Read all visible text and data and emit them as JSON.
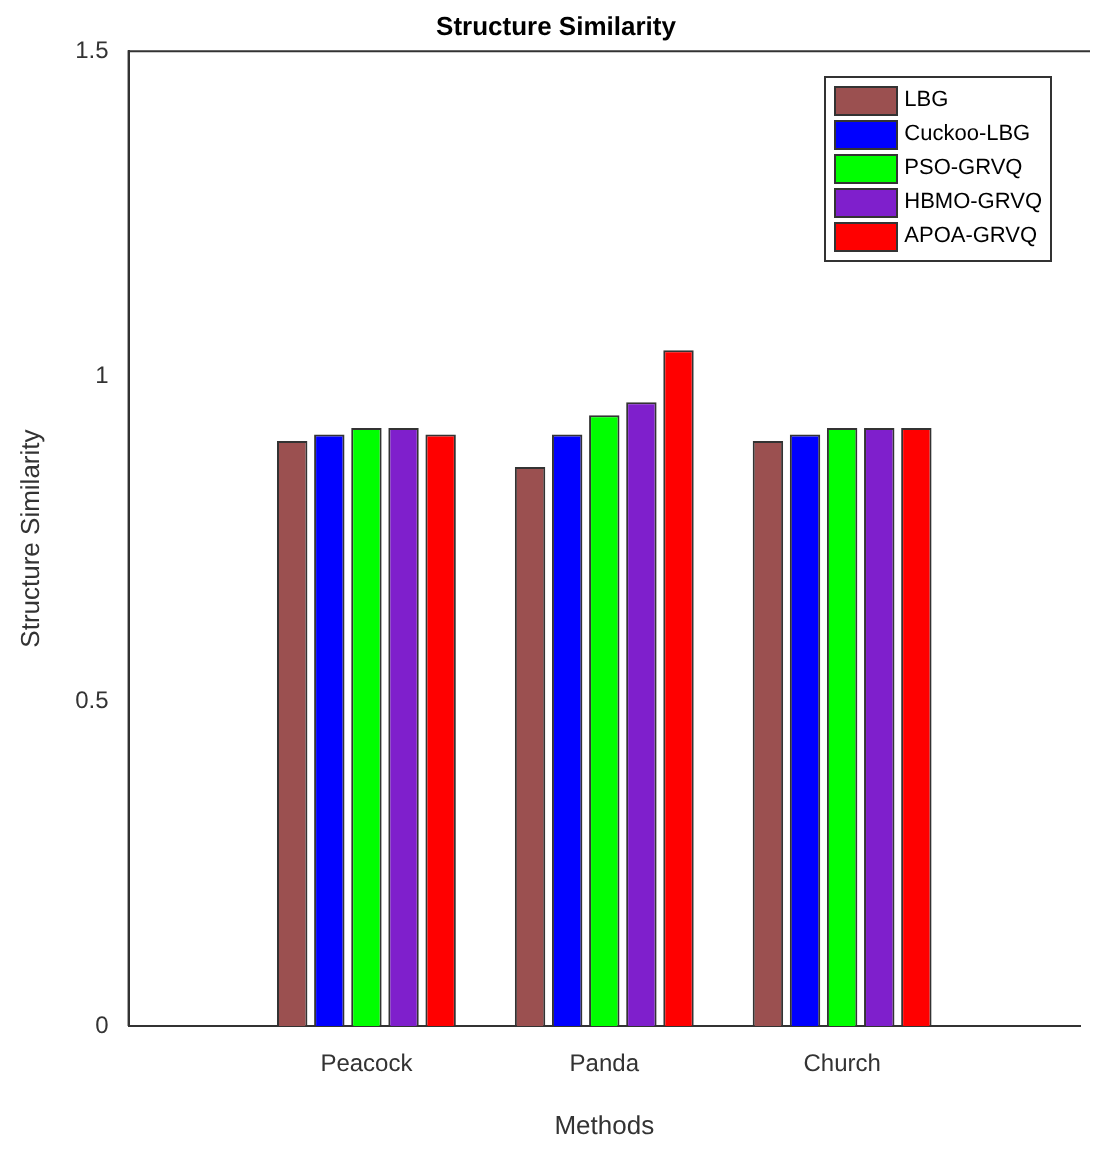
{
  "chart_data": {
    "type": "bar",
    "title": "Structure Similarity",
    "xlabel": "Methods",
    "ylabel": "Structure Similarity",
    "categories": [
      null,
      "Peacock",
      "Panda",
      "Church",
      null
    ],
    "series": [
      {
        "name": "LBG",
        "color": "#9b5050",
        "values": [
          null,
          0.9,
          0.86,
          0.9,
          null
        ]
      },
      {
        "name": "Cuckoo-LBG",
        "color": "#0000ff",
        "values": [
          null,
          0.91,
          0.91,
          0.91,
          null
        ]
      },
      {
        "name": "PSO-GRVQ",
        "color": "#00ff00",
        "values": [
          null,
          0.92,
          0.94,
          0.92,
          null
        ]
      },
      {
        "name": "HBMO-GRVQ",
        "color": "#7f1fcc",
        "values": [
          null,
          0.92,
          0.96,
          0.92,
          null
        ]
      },
      {
        "name": "APOA-GRVQ",
        "color": "#ff0000",
        "values": [
          null,
          0.91,
          1.04,
          0.92,
          null
        ]
      }
    ],
    "ylim": [
      0,
      1.5
    ],
    "yticks": [
      0,
      0.5,
      1,
      1.5
    ],
    "grid": false,
    "legend": "top right"
  }
}
